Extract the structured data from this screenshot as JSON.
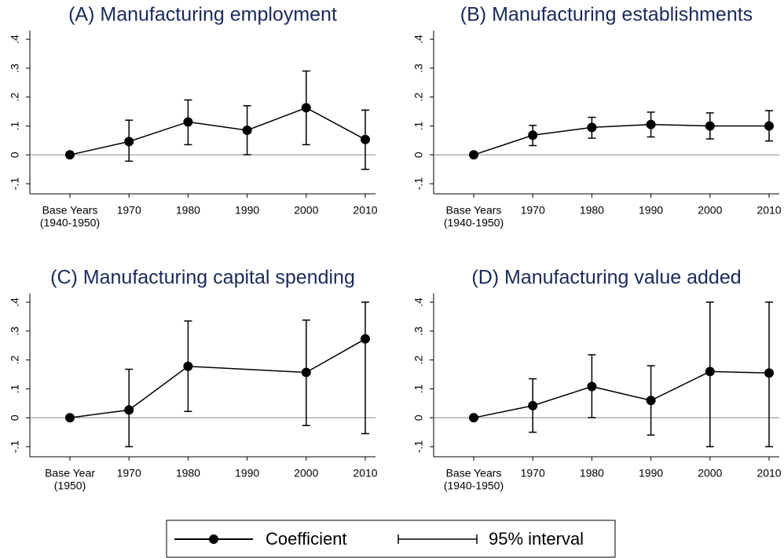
{
  "chart_data": [
    {
      "type": "line",
      "title": "(A) Manufacturing employment",
      "categories": [
        [
          "Base Years",
          "(1940-1950)"
        ],
        "1970",
        "1980",
        "1990",
        "2000",
        "2010"
      ],
      "values": [
        0,
        0.046,
        0.114,
        0.085,
        0.163,
        0.053
      ],
      "ci_low": [
        null,
        -0.022,
        0.035,
        0.0,
        0.035,
        -0.05
      ],
      "ci_high": [
        null,
        0.12,
        0.19,
        0.17,
        0.29,
        0.155
      ],
      "color": "#000000",
      "ylim": [
        -0.135,
        0.43
      ],
      "yticks": [
        {
          "value": -0.1,
          "label": "-.1"
        },
        0,
        {
          "value": 0.1,
          "label": ".1"
        },
        {
          "value": 0.2,
          "label": ".2"
        },
        {
          "value": 0.3,
          "label": ".3"
        },
        {
          "value": 0.4,
          "label": ".4"
        }
      ]
    },
    {
      "type": "line",
      "title": "(B) Manufacturing establishments",
      "categories": [
        [
          "Base Years",
          "(1940-1950)"
        ],
        "1970",
        "1980",
        "1990",
        "2000",
        "2010"
      ],
      "values": [
        0,
        0.068,
        0.095,
        0.105,
        0.1,
        0.1
      ],
      "ci_low": [
        null,
        0.032,
        0.058,
        0.062,
        0.055,
        0.048
      ],
      "ci_high": [
        null,
        0.102,
        0.13,
        0.148,
        0.145,
        0.153
      ],
      "color": "#000000",
      "ylim": [
        -0.135,
        0.43
      ],
      "yticks": [
        {
          "value": -0.1,
          "label": "-.1"
        },
        0,
        {
          "value": 0.1,
          "label": ".1"
        },
        {
          "value": 0.2,
          "label": ".2"
        },
        {
          "value": 0.3,
          "label": ".3"
        },
        {
          "value": 0.4,
          "label": ".4"
        }
      ]
    },
    {
      "type": "line",
      "title": "(C) Manufacturing capital spending",
      "categories": [
        [
          "Base Year",
          "(1950)"
        ],
        "1970",
        "1980",
        "1990",
        "2000",
        "2010"
      ],
      "values": [
        0,
        0.027,
        0.178,
        null,
        0.157,
        0.273
      ],
      "ci_low": [
        null,
        -0.1,
        0.022,
        null,
        -0.027,
        -0.055
      ],
      "ci_high": [
        null,
        0.168,
        0.335,
        null,
        0.338,
        0.4
      ],
      "color": "#000000",
      "ylim": [
        -0.135,
        0.43
      ],
      "connect_gaps": true,
      "yticks": [
        {
          "value": -0.1,
          "label": "-.1"
        },
        0,
        {
          "value": 0.1,
          "label": ".1"
        },
        {
          "value": 0.2,
          "label": ".2"
        },
        {
          "value": 0.3,
          "label": ".3"
        },
        {
          "value": 0.4,
          "label": ".4"
        }
      ]
    },
    {
      "type": "line",
      "title": "(D) Manufacturing value added",
      "categories": [
        [
          "Base Years",
          "(1940-1950)"
        ],
        "1970",
        "1980",
        "1990",
        "2000",
        "2010"
      ],
      "values": [
        0,
        0.042,
        0.108,
        0.06,
        0.16,
        0.155
      ],
      "ci_low": [
        null,
        -0.05,
        0.0,
        -0.06,
        -0.1,
        -0.1
      ],
      "ci_high": [
        null,
        0.135,
        0.218,
        0.18,
        0.4,
        0.4
      ],
      "color": "#000000",
      "ylim": [
        -0.135,
        0.43
      ],
      "yticks": [
        {
          "value": -0.1,
          "label": "-.1"
        },
        0,
        {
          "value": 0.1,
          "label": ".1"
        },
        {
          "value": 0.2,
          "label": ".2"
        },
        {
          "value": 0.3,
          "label": ".3"
        },
        {
          "value": 0.4,
          "label": ".4"
        }
      ]
    }
  ],
  "legend": {
    "coefficient": "Coefficient",
    "interval": "95% interval"
  }
}
